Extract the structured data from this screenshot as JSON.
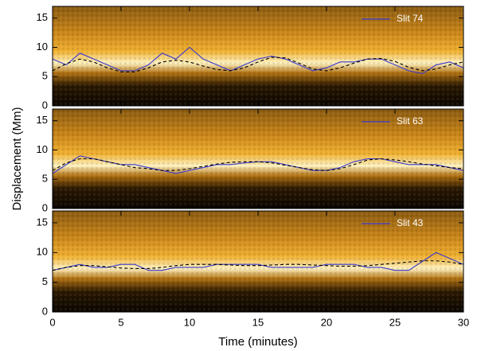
{
  "chart_data": [
    {
      "type": "line",
      "legend": "upper right",
      "x": [
        0,
        1,
        2,
        3,
        4,
        5,
        6,
        7,
        8,
        9,
        10,
        11,
        12,
        13,
        14,
        15,
        16,
        17,
        18,
        19,
        20,
        21,
        22,
        23,
        24,
        25,
        26,
        27,
        28,
        29,
        30
      ],
      "series": [
        {
          "name": "Slit 74",
          "color": "#3a3ad0",
          "values": [
            8,
            7,
            9,
            8,
            7,
            6,
            6,
            7,
            9,
            8,
            10,
            8,
            7,
            6,
            7,
            8,
            8.5,
            8,
            7,
            6,
            6.5,
            7.5,
            7.5,
            8,
            8,
            7,
            6,
            5.5,
            7,
            7.5,
            6.5
          ]
        },
        {
          "color": "#000000",
          "dash": true,
          "values": [
            6,
            7.2,
            8,
            7.5,
            6.5,
            5.8,
            5.8,
            6.5,
            7.5,
            7.8,
            7.5,
            6.8,
            6.2,
            6,
            6.5,
            7.5,
            8.3,
            8.2,
            7.3,
            6.3,
            6,
            6.5,
            7.3,
            8,
            8.1,
            7.6,
            6.6,
            6,
            6.3,
            7,
            7.5
          ]
        }
      ],
      "xlim": [
        0,
        30
      ],
      "xticks": [
        0,
        5,
        10,
        15,
        20,
        25,
        30
      ],
      "ylim": [
        0,
        17
      ],
      "yticks": [
        0,
        5,
        10,
        15
      ]
    },
    {
      "type": "line",
      "legend": "upper right",
      "ylabel": "Displacement (Mm)",
      "x": [
        0,
        1,
        2,
        3,
        4,
        5,
        6,
        7,
        8,
        9,
        10,
        11,
        12,
        13,
        14,
        15,
        16,
        17,
        18,
        19,
        20,
        21,
        22,
        23,
        24,
        25,
        26,
        27,
        28,
        29,
        30
      ],
      "series": [
        {
          "name": "Slit 63",
          "color": "#3a3ad0",
          "values": [
            6,
            7.5,
            9,
            8.5,
            8,
            7.5,
            7.5,
            7,
            6.5,
            6,
            6.5,
            7,
            7.5,
            7.5,
            7.8,
            8,
            8,
            7.5,
            7,
            6.5,
            6.5,
            7,
            8,
            8.5,
            8.5,
            8,
            7.5,
            7.5,
            7.5,
            7,
            6.5
          ]
        },
        {
          "color": "#000000",
          "dash": true,
          "values": [
            6.5,
            7.8,
            8.5,
            8.5,
            8,
            7.5,
            7,
            6.8,
            6.5,
            6.5,
            6.8,
            7.2,
            7.6,
            7.9,
            8,
            8,
            7.8,
            7.4,
            7,
            6.6,
            6.5,
            6.8,
            7.5,
            8.3,
            8.5,
            8.3,
            8,
            7.6,
            7.3,
            7,
            6.8
          ]
        }
      ],
      "xlim": [
        0,
        30
      ],
      "xticks": [
        0,
        5,
        10,
        15,
        20,
        25,
        30
      ],
      "ylim": [
        0,
        17
      ],
      "yticks": [
        0,
        5,
        10,
        15
      ]
    },
    {
      "type": "line",
      "legend": "upper right",
      "xlabel": "Time (minutes)",
      "x": [
        0,
        1,
        2,
        3,
        4,
        5,
        6,
        7,
        8,
        9,
        10,
        11,
        12,
        13,
        14,
        15,
        16,
        17,
        18,
        19,
        20,
        21,
        22,
        23,
        24,
        25,
        26,
        27,
        28,
        29,
        30
      ],
      "series": [
        {
          "name": "Slit 43",
          "color": "#3a3ad0",
          "values": [
            7,
            7.5,
            8,
            7.5,
            7.5,
            8,
            8,
            7,
            7,
            7.5,
            7.5,
            7.5,
            8,
            8,
            8,
            8,
            7.5,
            7.5,
            7.5,
            7.5,
            8,
            8,
            8,
            7.5,
            7.5,
            7,
            7,
            8.5,
            10,
            9,
            8
          ]
        },
        {
          "color": "#000000",
          "dash": true,
          "values": [
            7,
            7.5,
            7.8,
            7.8,
            7.6,
            7.4,
            7.3,
            7.3,
            7.5,
            7.8,
            8,
            8,
            8,
            7.9,
            7.8,
            7.8,
            7.9,
            8,
            8,
            7.9,
            7.8,
            7.7,
            7.7,
            7.8,
            8,
            8.2,
            8.4,
            8.6,
            8.6,
            8.4,
            8
          ]
        }
      ],
      "xlim": [
        0,
        30
      ],
      "xticks": [
        0,
        5,
        10,
        15,
        20,
        25,
        30
      ],
      "ylim": [
        0,
        17
      ],
      "yticks": [
        0,
        5,
        10,
        15
      ]
    }
  ]
}
